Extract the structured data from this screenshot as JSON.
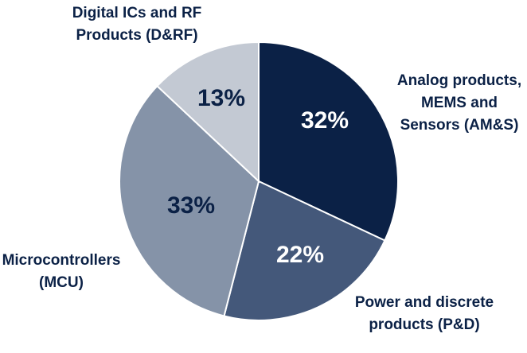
{
  "chart_data": {
    "type": "pie",
    "categories": [
      [
        "Analog products,",
        "MEMS and",
        "Sensors (AM&S)"
      ],
      [
        "Power and discrete",
        "products (P&D)"
      ],
      [
        "Microcontrollers",
        "(MCU)"
      ],
      [
        "Digital ICs and RF",
        "Products (D&RF)"
      ]
    ],
    "values": [
      32,
      22,
      33,
      13
    ],
    "value_labels": [
      "32%",
      "22%",
      "33%",
      "13%"
    ],
    "colors": [
      "#0b2146",
      "#44587a",
      "#8593a8",
      "#c3c9d3"
    ],
    "value_label_colors": [
      "#ffffff",
      "#ffffff",
      "#0b2146",
      "#0b2146"
    ]
  }
}
